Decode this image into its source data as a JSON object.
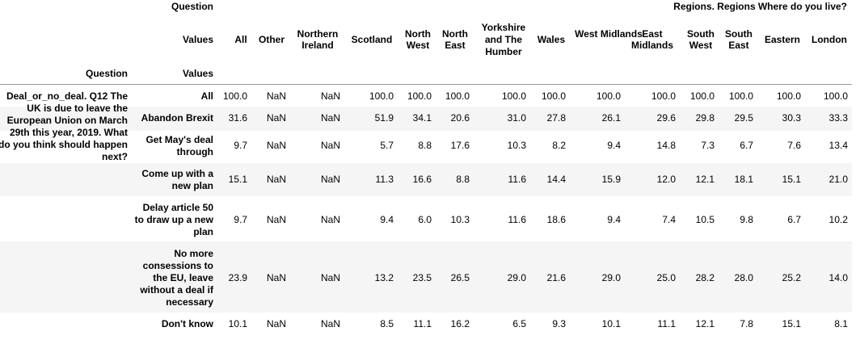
{
  "header": {
    "row1_index_label": "Question",
    "row1_group_label": "Regions. Regions Where do you live?",
    "row2_index_label": "Values",
    "row3_col1": "Question",
    "row3_col2": "Values"
  },
  "columns": [
    "All",
    "Other",
    "Northern Ireland",
    "Scotland",
    "North West",
    "North East",
    "Yorkshire and The Humber",
    "Wales",
    "West Midlands",
    "East Midlands",
    "South West",
    "South East",
    "Eastern",
    "London"
  ],
  "question_label": "Deal_or_no_deal. Q12 The UK is due to leave the European Union on March 29th this year, 2019. What do you think should happen next?",
  "rows": [
    {
      "label": "All",
      "values": [
        "100.0",
        "NaN",
        "NaN",
        "100.0",
        "100.0",
        "100.0",
        "100.0",
        "100.0",
        "100.0",
        "100.0",
        "100.0",
        "100.0",
        "100.0",
        "100.0"
      ]
    },
    {
      "label": "Abandon Brexit",
      "values": [
        "31.6",
        "NaN",
        "NaN",
        "51.9",
        "34.1",
        "20.6",
        "31.0",
        "27.8",
        "26.1",
        "29.6",
        "29.8",
        "29.5",
        "30.3",
        "33.3"
      ]
    },
    {
      "label": "Get May's deal through",
      "values": [
        "9.7",
        "NaN",
        "NaN",
        "5.7",
        "8.8",
        "17.6",
        "10.3",
        "8.2",
        "9.4",
        "14.8",
        "7.3",
        "6.7",
        "7.6",
        "13.4"
      ]
    },
    {
      "label": "Come up with a new plan",
      "values": [
        "15.1",
        "NaN",
        "NaN",
        "11.3",
        "16.6",
        "8.8",
        "11.6",
        "14.4",
        "15.9",
        "12.0",
        "12.1",
        "18.1",
        "15.1",
        "21.0"
      ]
    },
    {
      "label": "Delay article 50 to draw up a new plan",
      "values": [
        "9.7",
        "NaN",
        "NaN",
        "9.4",
        "6.0",
        "10.3",
        "11.6",
        "18.6",
        "9.4",
        "7.4",
        "10.5",
        "9.8",
        "6.7",
        "10.2"
      ]
    },
    {
      "label": "No more consessions to the EU, leave without a deal if necessary",
      "values": [
        "23.9",
        "NaN",
        "NaN",
        "13.2",
        "23.5",
        "26.5",
        "29.0",
        "21.6",
        "29.0",
        "25.0",
        "28.2",
        "28.0",
        "25.2",
        "14.0"
      ]
    },
    {
      "label": "Don't know",
      "values": [
        "10.1",
        "NaN",
        "NaN",
        "8.5",
        "11.1",
        "16.2",
        "6.5",
        "9.3",
        "10.1",
        "11.1",
        "12.1",
        "7.8",
        "15.1",
        "8.1"
      ]
    }
  ]
}
